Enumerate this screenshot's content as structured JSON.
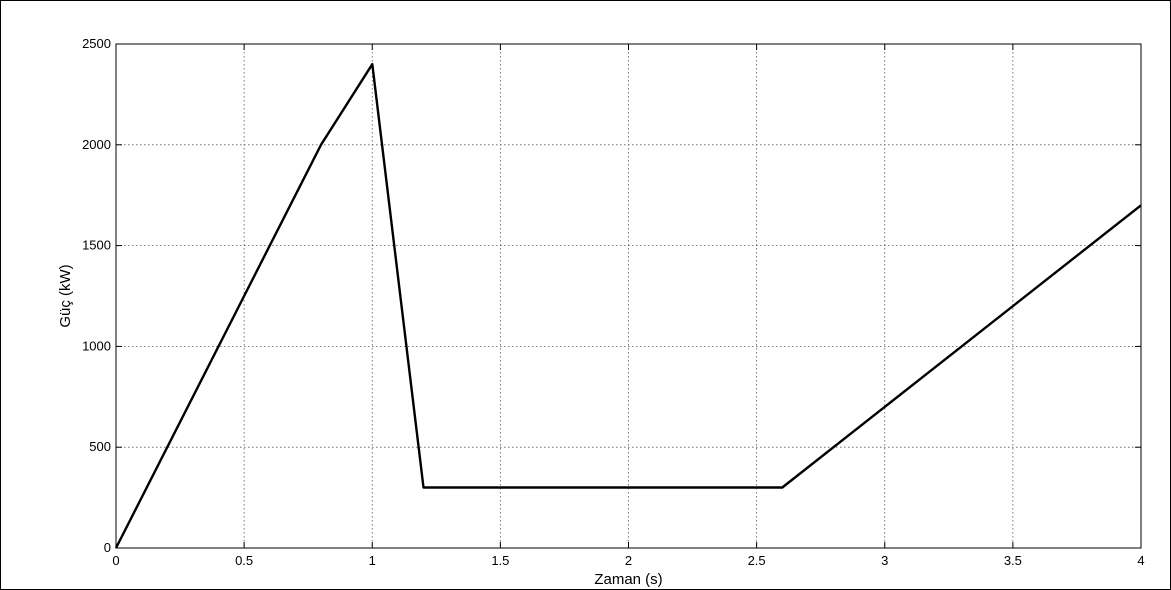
{
  "chart_data": {
    "type": "line",
    "title": "",
    "xlabel": "Zaman (s)",
    "ylabel": "Güç (kW)",
    "xlim": [
      0,
      4
    ],
    "ylim": [
      0,
      2500
    ],
    "xticks": [
      0,
      0.5,
      1,
      1.5,
      2,
      2.5,
      3,
      3.5,
      4
    ],
    "yticks": [
      0,
      500,
      1000,
      1500,
      2000,
      2500
    ],
    "xtick_labels": [
      "0",
      "0.5",
      "1",
      "1.5",
      "2",
      "2.5",
      "3",
      "3.5",
      "4"
    ],
    "ytick_labels": [
      "0",
      "500",
      "1000",
      "1500",
      "2000",
      "2500"
    ],
    "grid": true,
    "legend": "none",
    "line_color": "#000000",
    "series": [
      {
        "x": [
          0,
          0.8,
          1.0,
          1.2,
          2.6,
          4.0
        ],
        "y": [
          0,
          2000,
          2400,
          300,
          300,
          1700
        ]
      }
    ]
  }
}
